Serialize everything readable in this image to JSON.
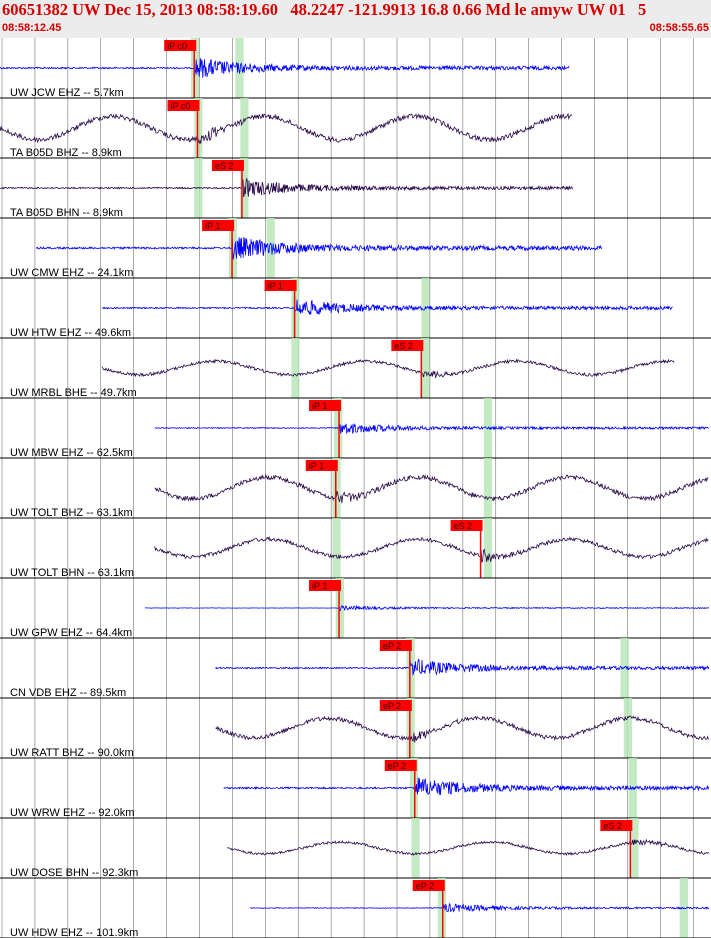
{
  "header": {
    "title": "60651382 UW Dec 15, 2013 08:58:19.60   48.2247 -121.9913 16.8 0.66 Md le amyw UW 01   5",
    "start_time": "08:58:12.45",
    "end_time": "08:58:55.65"
  },
  "colors": {
    "blue": "#0000ff",
    "dark": "#2a0a4a",
    "pick": "#ff0000",
    "window": "#b8e6b8",
    "grid": "#000000"
  },
  "chart_data": {
    "type": "line",
    "title": "60651382 UW Dec 15, 2013 08:58:19.60   48.2247 -121.9913 16.8 0.66 Md le amyw UW 01   5",
    "x_range": [
      "08:58:12.45",
      "08:58:55.65"
    ],
    "xlim": [
      0,
      43.2
    ],
    "series": [
      {
        "name": "UW JCW EHZ -- 5.7km",
        "color": "blue",
        "wave": "hf",
        "start": 0,
        "end": 34.6,
        "amp": 0.35,
        "picks": [
          {
            "label": "iP c0",
            "t": 11.8
          }
        ],
        "windows": [
          {
            "t": 11.6,
            "w": 0.5
          },
          {
            "t": 14.3,
            "w": 0.5
          }
        ]
      },
      {
        "name": "TA B05D BHZ -- 8.9km",
        "color": "dark",
        "wave": "lf",
        "start": 0,
        "end": 34.8,
        "amp": 0.6,
        "picks": [
          {
            "label": "iP c0",
            "t": 12.0
          }
        ],
        "windows": [
          {
            "t": 11.8,
            "w": 0.5
          },
          {
            "t": 14.6,
            "w": 0.5
          }
        ]
      },
      {
        "name": "TA B05D BHN -- 8.9km",
        "color": "dark",
        "wave": "hf",
        "start": 0,
        "end": 34.8,
        "amp": 0.3,
        "picks": [
          {
            "label": "eS 2",
            "t": 14.7
          }
        ],
        "windows": [
          {
            "t": 11.8,
            "w": 0.5
          },
          {
            "t": 14.6,
            "w": 0.5
          }
        ]
      },
      {
        "name": "UW CMW EHZ -- 24.1km",
        "color": "blue",
        "wave": "hf",
        "start": 2.2,
        "end": 36.6,
        "amp": 0.4,
        "picks": [
          {
            "label": "iP 1",
            "t": 14.1
          }
        ],
        "windows": [
          {
            "t": 13.9,
            "w": 0.5
          },
          {
            "t": 16.2,
            "w": 0.5
          }
        ]
      },
      {
        "name": "UW HTW EHZ -- 49.6km",
        "color": "blue",
        "wave": "hf",
        "start": 6.2,
        "end": 40.9,
        "amp": 0.3,
        "picks": [
          {
            "label": "iP 1",
            "t": 17.9
          }
        ],
        "windows": [
          {
            "t": 17.7,
            "w": 0.5
          },
          {
            "t": 25.6,
            "w": 0.5
          }
        ]
      },
      {
        "name": "UW MRBL BHE -- 49.7km",
        "color": "dark",
        "wave": "lf",
        "start": 6.2,
        "end": 41.0,
        "amp": 0.35,
        "picks": [
          {
            "label": "eS 2",
            "t": 25.6
          }
        ],
        "windows": [
          {
            "t": 17.7,
            "w": 0.5
          },
          {
            "t": 25.6,
            "w": 0.5
          }
        ]
      },
      {
        "name": "UW MBW EHZ -- 62.5km",
        "color": "blue",
        "wave": "hf",
        "start": 9.4,
        "end": 43.2,
        "amp": 0.2,
        "picks": [
          {
            "label": "iP 1",
            "t": 20.6
          }
        ],
        "windows": [
          {
            "t": 20.3,
            "w": 0.5
          },
          {
            "t": 29.4,
            "w": 0.5
          }
        ]
      },
      {
        "name": "UW TOLT BHZ -- 63.1km",
        "color": "dark",
        "wave": "lf",
        "start": 9.4,
        "end": 43.2,
        "amp": 0.55,
        "picks": [
          {
            "label": "iP 1",
            "t": 20.4
          }
        ],
        "windows": [
          {
            "t": 20.2,
            "w": 0.5
          },
          {
            "t": 29.4,
            "w": 0.5
          }
        ]
      },
      {
        "name": "UW TOLT BHN -- 63.1km",
        "color": "dark",
        "wave": "lf",
        "start": 9.4,
        "end": 43.2,
        "amp": 0.45,
        "picks": [
          {
            "label": "eS 2",
            "t": 29.2
          }
        ],
        "windows": [
          {
            "t": 20.2,
            "w": 0.5
          },
          {
            "t": 29.4,
            "w": 0.5
          }
        ]
      },
      {
        "name": "UW GPW EHZ -- 64.4km",
        "color": "blue",
        "wave": "hf",
        "start": 8.8,
        "end": 43.2,
        "amp": 0.08,
        "picks": [
          {
            "label": "iP 1",
            "t": 20.6
          }
        ],
        "windows": [
          {
            "t": 20.4,
            "w": 0.5
          }
        ]
      },
      {
        "name": "CN VDB EHZ -- 89.5km",
        "color": "blue",
        "wave": "hf",
        "start": 13.1,
        "end": 47.8,
        "amp": 0.3,
        "picks": [
          {
            "label": "eP 2",
            "t": 24.9
          }
        ],
        "windows": [
          {
            "t": 24.7,
            "w": 0.5
          },
          {
            "t": 37.7,
            "w": 0.5
          }
        ]
      },
      {
        "name": "UW RATT BHZ -- 90.0km",
        "color": "dark",
        "wave": "lf",
        "start": 13.1,
        "end": 48.1,
        "amp": 0.5,
        "picks": [
          {
            "label": "eP 2",
            "t": 24.9
          }
        ],
        "windows": [
          {
            "t": 24.7,
            "w": 0.5
          },
          {
            "t": 37.9,
            "w": 0.5
          }
        ]
      },
      {
        "name": "UW WRW EHZ -- 92.0km",
        "color": "blue",
        "wave": "hf",
        "start": 13.6,
        "end": 48.1,
        "amp": 0.35,
        "picks": [
          {
            "label": "eP 2",
            "t": 25.2
          }
        ],
        "windows": [
          {
            "t": 24.9,
            "w": 0.5
          },
          {
            "t": 38.2,
            "w": 0.5
          }
        ]
      },
      {
        "name": "UW DOSE BHN -- 92.3km",
        "color": "dark",
        "wave": "lf",
        "start": 13.8,
        "end": 48.3,
        "amp": 0.3,
        "picks": [
          {
            "label": "eS 2",
            "t": 38.3
          }
        ],
        "windows": [
          {
            "t": 25.0,
            "w": 0.5
          },
          {
            "t": 38.3,
            "w": 0.5
          }
        ]
      },
      {
        "name": "UW HDW EHZ -- 101.9km",
        "color": "blue",
        "wave": "hf",
        "start": 15.2,
        "end": 49.6,
        "amp": 0.15,
        "picks": [
          {
            "label": "eP 2",
            "t": 26.9
          }
        ],
        "windows": [
          {
            "t": 26.6,
            "w": 0.5
          },
          {
            "t": 41.3,
            "w": 0.5
          }
        ]
      }
    ],
    "grid": true
  }
}
